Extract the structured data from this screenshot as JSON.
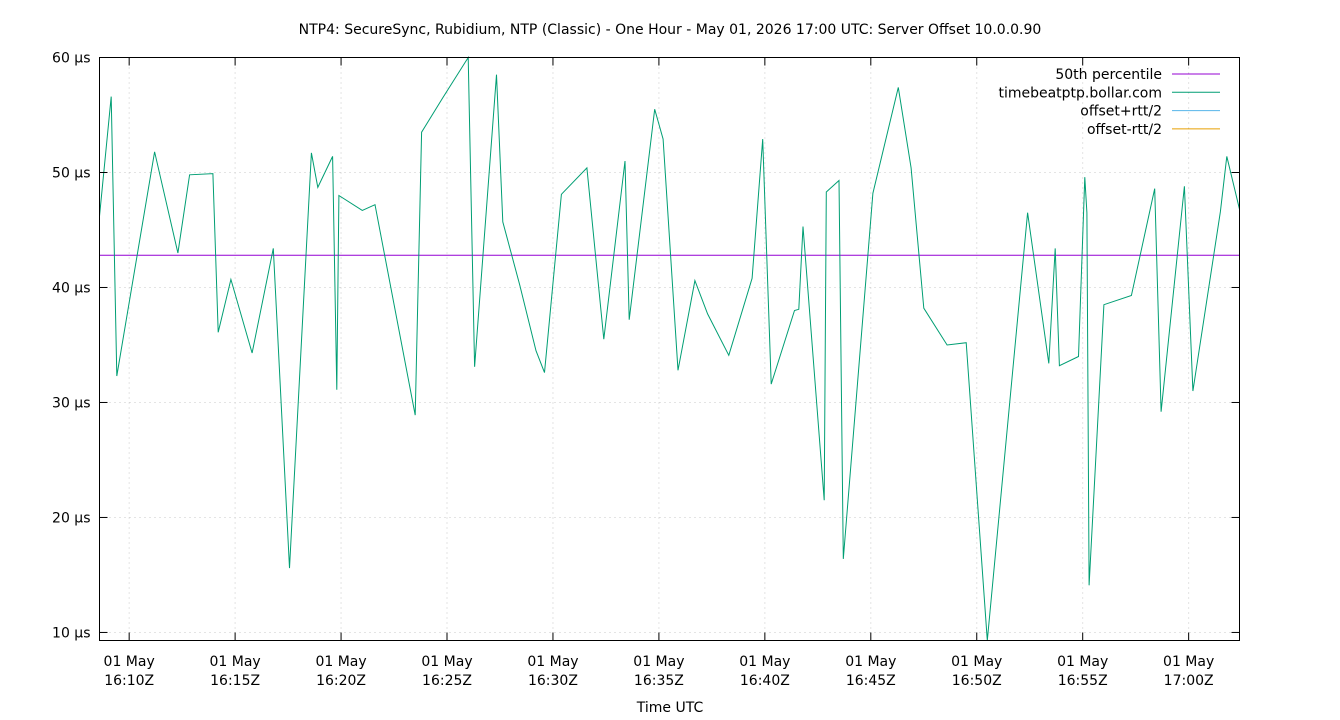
{
  "chart_data": {
    "type": "line",
    "title": "NTP4: SecureSync, Rubidium, NTP (Classic) - One Hour - May 01, 2026 17:00 UTC: Server Offset 10.0.0.90",
    "xlabel": "Time UTC",
    "ylabel": "",
    "x_range": [
      "2026-05-01T16:08:36Z",
      "2026-05-01T17:02:24Z"
    ],
    "ylim": [
      9.3,
      60
    ],
    "y_unit": "µs",
    "grid": true,
    "legend_position": "top-right",
    "y_ticks": [
      {
        "value": 10,
        "label": "10 µs"
      },
      {
        "value": 20,
        "label": "20 µs"
      },
      {
        "value": 30,
        "label": "30 µs"
      },
      {
        "value": 40,
        "label": "40 µs"
      },
      {
        "value": 50,
        "label": "50 µs"
      },
      {
        "value": 60,
        "label": "60 µs"
      }
    ],
    "x_ticks": [
      {
        "value": "2026-05-01T16:10:00Z",
        "line1": "01 May",
        "line2": "16:10Z"
      },
      {
        "value": "2026-05-01T16:15:00Z",
        "line1": "01 May",
        "line2": "16:15Z"
      },
      {
        "value": "2026-05-01T16:20:00Z",
        "line1": "01 May",
        "line2": "16:20Z"
      },
      {
        "value": "2026-05-01T16:25:00Z",
        "line1": "01 May",
        "line2": "16:25Z"
      },
      {
        "value": "2026-05-01T16:30:00Z",
        "line1": "01 May",
        "line2": "16:30Z"
      },
      {
        "value": "2026-05-01T16:35:00Z",
        "line1": "01 May",
        "line2": "16:35Z"
      },
      {
        "value": "2026-05-01T16:40:00Z",
        "line1": "01 May",
        "line2": "16:40Z"
      },
      {
        "value": "2026-05-01T16:45:00Z",
        "line1": "01 May",
        "line2": "16:45Z"
      },
      {
        "value": "2026-05-01T16:50:00Z",
        "line1": "01 May",
        "line2": "16:50Z"
      },
      {
        "value": "2026-05-01T16:55:00Z",
        "line1": "01 May",
        "line2": "16:55Z"
      },
      {
        "value": "2026-05-01T17:00:00Z",
        "line1": "01 May",
        "line2": "17:00Z"
      }
    ],
    "series": [
      {
        "name": "50th percentile",
        "color": "#9400d3",
        "x": [
          "2026-05-01T16:08:36Z",
          "2026-05-01T17:02:24Z"
        ],
        "y": [
          42.8,
          42.8
        ]
      },
      {
        "name": "timebeatptp.bollar.com",
        "color": "#009e73",
        "x": [
          "2026-05-01T16:08:36Z",
          "2026-05-01T16:09:09Z",
          "2026-05-01T16:09:25Z",
          "2026-05-01T16:10:00Z",
          "2026-05-01T16:11:12Z",
          "2026-05-01T16:12:18Z",
          "2026-05-01T16:12:51Z",
          "2026-05-01T16:13:57Z",
          "2026-05-01T16:14:12Z",
          "2026-05-01T16:14:48Z",
          "2026-05-01T16:15:48Z",
          "2026-05-01T16:16:48Z",
          "2026-05-01T16:17:34Z",
          "2026-05-01T16:18:36Z",
          "2026-05-01T16:18:54Z",
          "2026-05-01T16:19:36Z",
          "2026-05-01T16:19:48Z",
          "2026-05-01T16:19:54Z",
          "2026-05-01T16:21:00Z",
          "2026-05-01T16:21:36Z",
          "2026-05-01T16:23:30Z",
          "2026-05-01T16:23:48Z",
          "2026-05-01T16:24:48Z",
          "2026-05-01T16:26:00Z",
          "2026-05-01T16:26:18Z",
          "2026-05-01T16:27:20Z",
          "2026-05-01T16:27:38Z",
          "2026-05-01T16:28:26Z",
          "2026-05-01T16:29:12Z",
          "2026-05-01T16:29:36Z",
          "2026-05-01T16:30:24Z",
          "2026-05-01T16:31:36Z",
          "2026-05-01T16:32:24Z",
          "2026-05-01T16:33:24Z",
          "2026-05-01T16:33:36Z",
          "2026-05-01T16:34:48Z",
          "2026-05-01T16:35:12Z",
          "2026-05-01T16:35:54Z",
          "2026-05-01T16:36:42Z",
          "2026-05-01T16:37:18Z",
          "2026-05-01T16:38:18Z",
          "2026-05-01T16:39:24Z",
          "2026-05-01T16:39:54Z",
          "2026-05-01T16:40:18Z",
          "2026-05-01T16:41:24Z",
          "2026-05-01T16:41:36Z",
          "2026-05-01T16:41:48Z",
          "2026-05-01T16:42:48Z",
          "2026-05-01T16:42:54Z",
          "2026-05-01T16:43:30Z",
          "2026-05-01T16:43:42Z",
          "2026-05-01T16:45:06Z",
          "2026-05-01T16:46:18Z",
          "2026-05-01T16:46:54Z",
          "2026-05-01T16:47:30Z",
          "2026-05-01T16:48:36Z",
          "2026-05-01T16:49:30Z",
          "2026-05-01T16:50:30Z",
          "2026-05-01T16:52:24Z",
          "2026-05-01T16:53:24Z",
          "2026-05-01T16:53:42Z",
          "2026-05-01T16:53:54Z",
          "2026-05-01T16:54:48Z",
          "2026-05-01T16:55:06Z",
          "2026-05-01T16:55:12Z",
          "2026-05-01T16:55:18Z",
          "2026-05-01T16:56:00Z",
          "2026-05-01T16:57:18Z",
          "2026-05-01T16:58:24Z",
          "2026-05-01T16:58:42Z",
          "2026-05-01T16:59:48Z",
          "2026-05-01T17:00:12Z",
          "2026-05-01T17:01:30Z",
          "2026-05-01T17:01:48Z",
          "2026-05-01T17:02:24Z"
        ],
        "y": [
          46.2,
          56.6,
          32.3,
          38.7,
          51.8,
          43.0,
          49.8,
          49.9,
          36.1,
          40.7,
          34.3,
          43.4,
          15.6,
          51.7,
          48.7,
          51.4,
          31.1,
          48.0,
          46.7,
          47.2,
          28.9,
          53.5,
          56.5,
          60.0,
          33.1,
          58.5,
          45.7,
          40.2,
          34.5,
          32.6,
          48.1,
          50.4,
          35.5,
          51.0,
          37.2,
          55.5,
          52.9,
          32.8,
          40.6,
          37.7,
          34.1,
          40.8,
          52.9,
          31.6,
          38.0,
          38.1,
          45.3,
          21.5,
          48.3,
          49.3,
          16.4,
          48.2,
          57.4,
          50.4,
          38.2,
          35.0,
          35.2,
          9.3,
          46.5,
          33.4,
          43.4,
          33.2,
          34.0,
          49.6,
          46.5,
          14.1,
          38.5,
          39.3,
          48.6,
          29.2,
          48.8,
          31.0,
          46.6,
          51.4,
          46.8
        ]
      },
      {
        "name": "offset+rtt/2",
        "color": "#56b4e9",
        "x": [],
        "y": []
      },
      {
        "name": "offset-rtt/2",
        "color": "#e69f00",
        "x": [],
        "y": []
      }
    ]
  }
}
